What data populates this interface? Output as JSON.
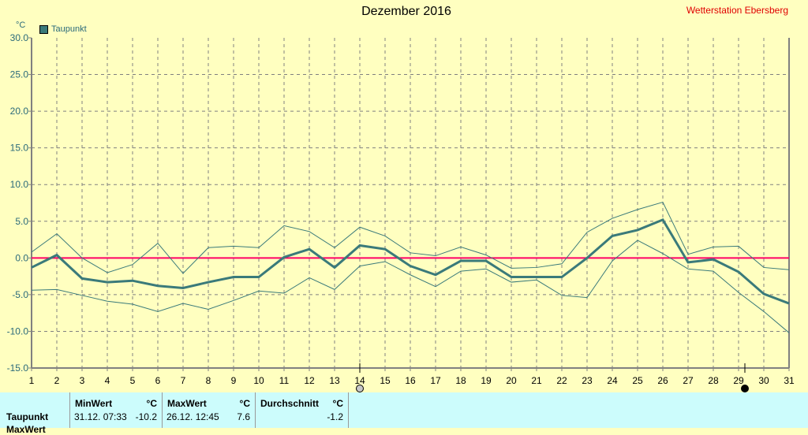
{
  "title": "Dezember 2016",
  "station": "Wetterstation Ebersberg",
  "unit": "°C",
  "legend": "Taupunkt",
  "colors": {
    "background": "#ffffc0",
    "series": "#3a7a7a",
    "zero_line": "#ff0066",
    "grid": "#808080",
    "table_bg": "#ccfcfc",
    "station_text": "#e00000"
  },
  "moon_phases": [
    {
      "day": 14,
      "icon": "full-moon-icon"
    },
    {
      "day": 29,
      "icon": "new-moon-icon"
    }
  ],
  "table": {
    "row_labels": [
      "Taupunkt",
      "MaxWert"
    ],
    "columns": [
      {
        "header": "MinWert",
        "unit": "°C",
        "time": "31.12.  07:33",
        "value": "-10.2"
      },
      {
        "header": "MaxWert",
        "unit": "°C",
        "time": "26.12.  12:45",
        "value": "7.6"
      },
      {
        "header": "Durchschnitt",
        "unit": "°C",
        "time": "",
        "value": "-1.2"
      }
    ]
  },
  "chart_data": {
    "type": "line",
    "title": "Dezember 2016",
    "ylabel": "°C",
    "ylim": [
      -15,
      30
    ],
    "yticks": [
      "30.0",
      "25.0",
      "20.0",
      "15.0",
      "10.0",
      "5.0",
      "0.0",
      "-5.0",
      "-10.0",
      "-15.0"
    ],
    "x": [
      1,
      2,
      3,
      4,
      5,
      6,
      7,
      8,
      9,
      10,
      11,
      12,
      13,
      14,
      15,
      16,
      17,
      18,
      19,
      20,
      21,
      22,
      23,
      24,
      25,
      26,
      27,
      28,
      29,
      30,
      31
    ],
    "grid": true,
    "legend_placement": "top-left",
    "series": [
      {
        "name": "Taupunkt",
        "role": "mean",
        "values": [
          -1.3,
          0.4,
          -2.8,
          -3.3,
          -3.1,
          -3.8,
          -4.1,
          -3.3,
          -2.6,
          -2.6,
          0.1,
          1.2,
          -1.3,
          1.7,
          1.2,
          -1.1,
          -2.3,
          -0.4,
          -0.4,
          -2.6,
          -2.6,
          -2.6,
          0.0,
          3.0,
          3.8,
          5.2,
          -0.6,
          -0.2,
          -1.9,
          -4.9,
          -6.2
        ]
      },
      {
        "role": "max",
        "values": [
          0.8,
          3.3,
          0.0,
          -2.0,
          -0.9,
          2.0,
          -2.1,
          1.4,
          1.6,
          1.4,
          4.4,
          3.6,
          1.4,
          4.2,
          3.0,
          0.7,
          0.3,
          1.5,
          0.4,
          -1.4,
          -1.3,
          -0.8,
          3.5,
          5.4,
          6.6,
          7.6,
          0.5,
          1.5,
          1.6,
          -1.3,
          -1.6
        ]
      },
      {
        "role": "min",
        "values": [
          -4.4,
          -4.3,
          -5.1,
          -5.9,
          -6.3,
          -7.3,
          -6.2,
          -7.0,
          -5.8,
          -4.5,
          -4.8,
          -2.7,
          -4.3,
          -1.1,
          -0.5,
          -2.3,
          -3.9,
          -1.8,
          -1.5,
          -3.3,
          -3.0,
          -5.1,
          -5.4,
          -0.4,
          2.4,
          0.6,
          -1.5,
          -1.8,
          -4.7,
          -7.3,
          -10.2
        ]
      }
    ]
  }
}
